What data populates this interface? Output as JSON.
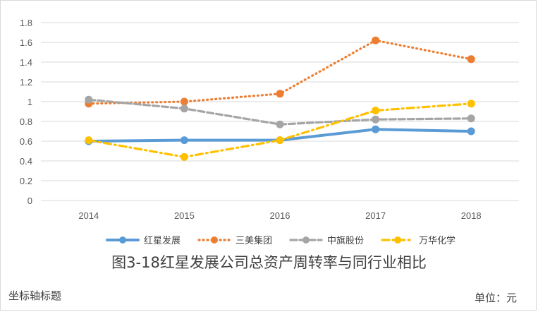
{
  "chart_data": {
    "type": "line",
    "title": "图3-18红星发展公司总资产周转率与同行业相比",
    "categories": [
      "2014",
      "2015",
      "2016",
      "2017",
      "2018"
    ],
    "y_ticks": [
      "0",
      "0.2",
      "0.4",
      "0.6",
      "0.8",
      "1",
      "1.2",
      "1.4",
      "1.6",
      "1.8"
    ],
    "ylim": [
      0,
      1.8
    ],
    "grid": true,
    "legend_position": "bottom",
    "xlabel": "",
    "ylabel": "坐标轴标题",
    "unit": "单位：元",
    "series": [
      {
        "name": "红星发展",
        "values": [
          0.6,
          0.61,
          0.61,
          0.72,
          0.7
        ],
        "color": "#5b9bd5",
        "style": "solid"
      },
      {
        "name": "三美集团",
        "values": [
          0.98,
          1.0,
          1.08,
          1.62,
          1.43
        ],
        "color": "#ed7d31",
        "style": "dotted"
      },
      {
        "name": "中旗股份",
        "values": [
          1.02,
          0.93,
          0.77,
          0.82,
          0.83
        ],
        "color": "#a5a5a5",
        "style": "dashed"
      },
      {
        "name": "万华化学",
        "values": [
          0.61,
          0.44,
          0.61,
          0.91,
          0.98
        ],
        "color": "#ffc000",
        "style": "dashdot"
      }
    ]
  }
}
